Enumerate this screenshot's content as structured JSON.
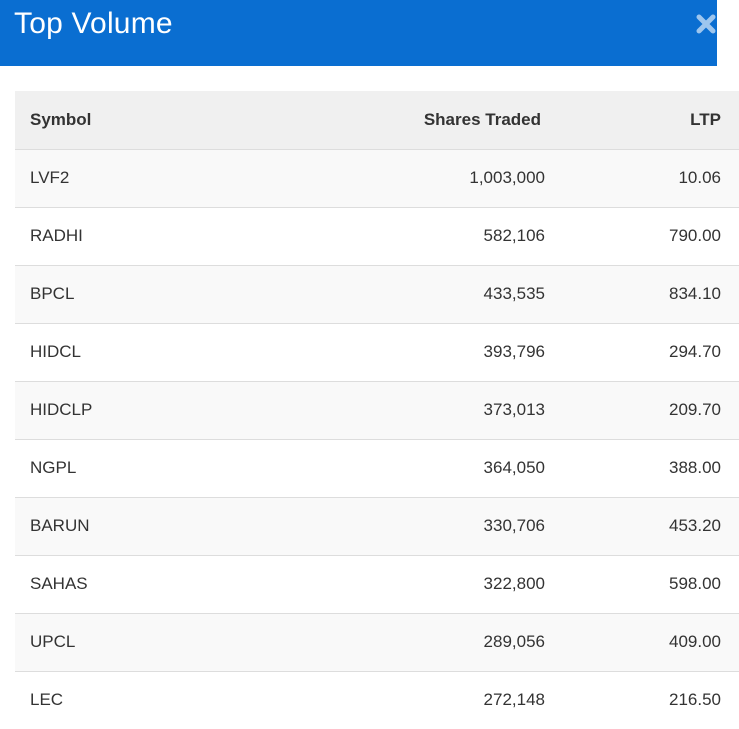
{
  "header": {
    "title": "Top Volume",
    "close_icon": "close-icon",
    "background_color": "#0a6ed1"
  },
  "table": {
    "columns": [
      "Symbol",
      "Shares Traded",
      "LTP"
    ],
    "rows": [
      {
        "symbol": "LVF2",
        "shares_traded": "1,003,000",
        "ltp": "10.06"
      },
      {
        "symbol": "RADHI",
        "shares_traded": "582,106",
        "ltp": "790.00"
      },
      {
        "symbol": "BPCL",
        "shares_traded": "433,535",
        "ltp": "834.10"
      },
      {
        "symbol": "HIDCL",
        "shares_traded": "393,796",
        "ltp": "294.70"
      },
      {
        "symbol": "HIDCLP",
        "shares_traded": "373,013",
        "ltp": "209.70"
      },
      {
        "symbol": "NGPL",
        "shares_traded": "364,050",
        "ltp": "388.00"
      },
      {
        "symbol": "BARUN",
        "shares_traded": "330,706",
        "ltp": "453.20"
      },
      {
        "symbol": "SAHAS",
        "shares_traded": "322,800",
        "ltp": "598.00"
      },
      {
        "symbol": "UPCL",
        "shares_traded": "289,056",
        "ltp": "409.00"
      },
      {
        "symbol": "LEC",
        "shares_traded": "272,148",
        "ltp": "216.50"
      }
    ]
  }
}
